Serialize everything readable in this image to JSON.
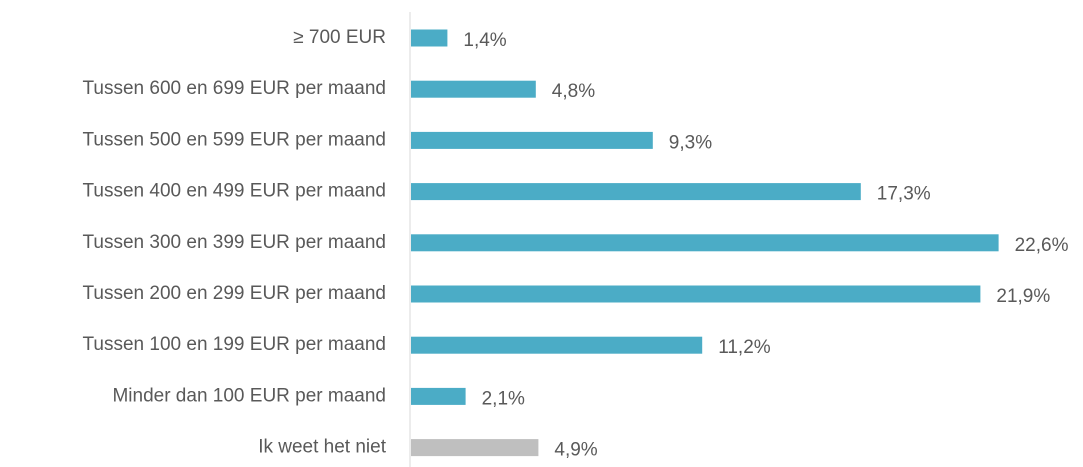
{
  "chart_data": {
    "type": "hbar",
    "categories": [
      "≥ 700 EUR",
      "Tussen 600 en 699 EUR per maand",
      "Tussen 500 en 599 EUR per maand",
      "Tussen 400 en 499 EUR per maand",
      "Tussen 300 en 399 EUR per maand",
      "Tussen 200 en 299 EUR per maand",
      "Tussen 100 en 199 EUR per maand",
      "Minder dan 100 EUR per maand",
      "Ik weet het niet"
    ],
    "values": [
      1.4,
      4.8,
      9.3,
      17.3,
      22.6,
      21.9,
      11.2,
      2.1,
      4.9
    ],
    "value_labels": [
      "1,4%",
      "4,8%",
      "9,3%",
      "17,3%",
      "22,6%",
      "21,9%",
      "11,2%",
      "2,1%",
      "4,9%"
    ],
    "colors": [
      "#4bacc6",
      "#4bacc6",
      "#4bacc6",
      "#4bacc6",
      "#4bacc6",
      "#4bacc6",
      "#4bacc6",
      "#4bacc6",
      "#bfbfbf"
    ]
  }
}
